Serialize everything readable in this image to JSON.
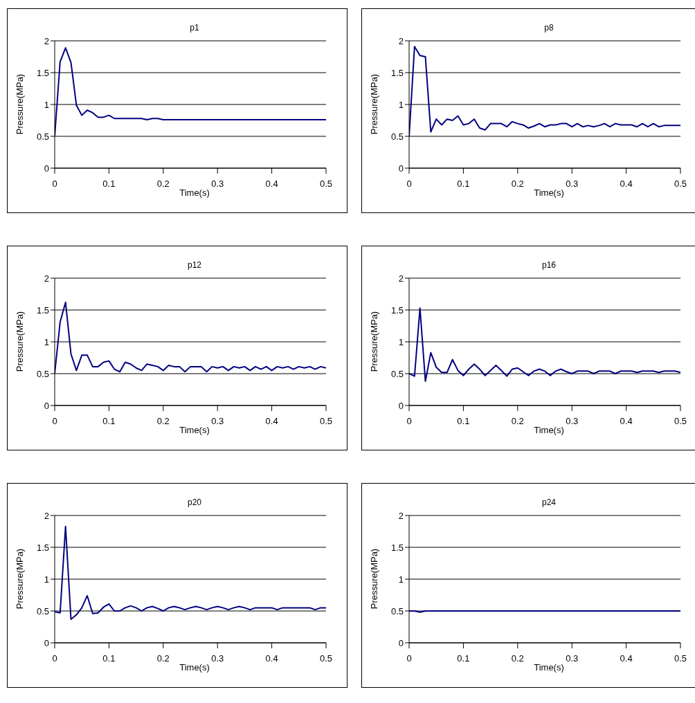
{
  "chart_data": [
    {
      "type": "line",
      "title": "p1",
      "xlabel": "Time(s)",
      "ylabel": "Pressure(MPa)",
      "color": "#000080",
      "grid": "y",
      "xlim": [
        0,
        0.5
      ],
      "ylim": [
        0,
        2
      ],
      "xticks": [
        0,
        0.1,
        0.2,
        0.3,
        0.4,
        0.5
      ],
      "yticks": [
        0,
        0.5,
        1,
        1.5,
        2
      ],
      "x": [
        0,
        0.01,
        0.02,
        0.03,
        0.04,
        0.05,
        0.06,
        0.07,
        0.08,
        0.09,
        0.1,
        0.11,
        0.12,
        0.13,
        0.14,
        0.15,
        0.16,
        0.17,
        0.18,
        0.19,
        0.2,
        0.21,
        0.22,
        0.23,
        0.24,
        0.25,
        0.26,
        0.27,
        0.28,
        0.29,
        0.3,
        0.31,
        0.32,
        0.33,
        0.34,
        0.35,
        0.36,
        0.37,
        0.38,
        0.39,
        0.4,
        0.41,
        0.42,
        0.43,
        0.44,
        0.45,
        0.46,
        0.47,
        0.48,
        0.49,
        0.5
      ],
      "values": [
        0.5,
        1.67,
        1.89,
        1.66,
        0.99,
        0.83,
        0.91,
        0.87,
        0.8,
        0.8,
        0.83,
        0.78,
        0.78,
        0.78,
        0.78,
        0.78,
        0.78,
        0.76,
        0.78,
        0.78,
        0.76,
        0.76,
        0.76,
        0.76,
        0.76,
        0.76,
        0.76,
        0.76,
        0.76,
        0.76,
        0.76,
        0.76,
        0.76,
        0.76,
        0.76,
        0.76,
        0.76,
        0.76,
        0.76,
        0.76,
        0.76,
        0.76,
        0.76,
        0.76,
        0.76,
        0.76,
        0.76,
        0.76,
        0.76,
        0.76,
        0.76
      ]
    },
    {
      "type": "line",
      "title": "p8",
      "xlabel": "Time(s)",
      "ylabel": "Pressure(MPa)",
      "color": "#000080",
      "grid": "y",
      "xlim": [
        0,
        0.5
      ],
      "ylim": [
        0,
        2
      ],
      "xticks": [
        0,
        0.1,
        0.2,
        0.3,
        0.4,
        0.5
      ],
      "yticks": [
        0,
        0.5,
        1,
        1.5,
        2
      ],
      "x": [
        0,
        0.01,
        0.02,
        0.03,
        0.04,
        0.05,
        0.06,
        0.07,
        0.08,
        0.09,
        0.1,
        0.11,
        0.12,
        0.13,
        0.14,
        0.15,
        0.16,
        0.17,
        0.18,
        0.19,
        0.2,
        0.21,
        0.22,
        0.23,
        0.24,
        0.25,
        0.26,
        0.27,
        0.28,
        0.29,
        0.3,
        0.31,
        0.32,
        0.33,
        0.34,
        0.35,
        0.36,
        0.37,
        0.38,
        0.39,
        0.4,
        0.41,
        0.42,
        0.43,
        0.44,
        0.45,
        0.46,
        0.47,
        0.48,
        0.49,
        0.5
      ],
      "values": [
        0.5,
        1.91,
        1.77,
        1.75,
        0.57,
        0.77,
        0.68,
        0.77,
        0.75,
        0.82,
        0.68,
        0.7,
        0.77,
        0.63,
        0.6,
        0.7,
        0.7,
        0.7,
        0.65,
        0.73,
        0.7,
        0.68,
        0.63,
        0.66,
        0.7,
        0.65,
        0.68,
        0.68,
        0.7,
        0.7,
        0.65,
        0.7,
        0.65,
        0.67,
        0.65,
        0.67,
        0.7,
        0.65,
        0.7,
        0.68,
        0.68,
        0.68,
        0.65,
        0.7,
        0.65,
        0.7,
        0.65,
        0.67,
        0.67,
        0.67,
        0.67
      ]
    },
    {
      "type": "line",
      "title": "p12",
      "xlabel": "Time(s)",
      "ylabel": "Pressure(MPa)",
      "color": "#000080",
      "grid": "y",
      "xlim": [
        0,
        0.5
      ],
      "ylim": [
        0,
        2
      ],
      "xticks": [
        0,
        0.1,
        0.2,
        0.3,
        0.4,
        0.5
      ],
      "yticks": [
        0,
        0.5,
        1,
        1.5,
        2
      ],
      "x": [
        0,
        0.01,
        0.02,
        0.03,
        0.04,
        0.05,
        0.06,
        0.07,
        0.08,
        0.09,
        0.1,
        0.11,
        0.12,
        0.13,
        0.14,
        0.15,
        0.16,
        0.17,
        0.18,
        0.19,
        0.2,
        0.21,
        0.22,
        0.23,
        0.24,
        0.25,
        0.26,
        0.27,
        0.28,
        0.29,
        0.3,
        0.31,
        0.32,
        0.33,
        0.34,
        0.35,
        0.36,
        0.37,
        0.38,
        0.39,
        0.4,
        0.41,
        0.42,
        0.43,
        0.44,
        0.45,
        0.46,
        0.47,
        0.48,
        0.49,
        0.5
      ],
      "values": [
        0.5,
        1.31,
        1.62,
        0.81,
        0.55,
        0.79,
        0.79,
        0.61,
        0.61,
        0.68,
        0.7,
        0.57,
        0.53,
        0.68,
        0.65,
        0.59,
        0.55,
        0.65,
        0.63,
        0.61,
        0.55,
        0.63,
        0.61,
        0.61,
        0.53,
        0.61,
        0.61,
        0.61,
        0.53,
        0.61,
        0.59,
        0.61,
        0.55,
        0.61,
        0.59,
        0.61,
        0.55,
        0.61,
        0.57,
        0.61,
        0.55,
        0.61,
        0.59,
        0.61,
        0.57,
        0.61,
        0.59,
        0.61,
        0.57,
        0.61,
        0.59
      ]
    },
    {
      "type": "line",
      "title": "p16",
      "xlabel": "Time(s)",
      "ylabel": "Pressure(MPa)",
      "color": "#000080",
      "grid": "y",
      "xlim": [
        0,
        0.5
      ],
      "ylim": [
        0,
        2
      ],
      "xticks": [
        0,
        0.1,
        0.2,
        0.3,
        0.4,
        0.5
      ],
      "yticks": [
        0,
        0.5,
        1,
        1.5,
        2
      ],
      "x": [
        0,
        0.01,
        0.02,
        0.03,
        0.04,
        0.05,
        0.06,
        0.07,
        0.08,
        0.09,
        0.1,
        0.11,
        0.12,
        0.13,
        0.14,
        0.15,
        0.16,
        0.17,
        0.18,
        0.19,
        0.2,
        0.21,
        0.22,
        0.23,
        0.24,
        0.25,
        0.26,
        0.27,
        0.28,
        0.29,
        0.3,
        0.31,
        0.32,
        0.33,
        0.34,
        0.35,
        0.36,
        0.37,
        0.38,
        0.39,
        0.4,
        0.41,
        0.42,
        0.43,
        0.44,
        0.45,
        0.46,
        0.47,
        0.48,
        0.49,
        0.5
      ],
      "values": [
        0.5,
        0.46,
        1.53,
        0.38,
        0.83,
        0.6,
        0.52,
        0.52,
        0.72,
        0.55,
        0.47,
        0.57,
        0.65,
        0.57,
        0.47,
        0.55,
        0.63,
        0.55,
        0.46,
        0.57,
        0.59,
        0.53,
        0.47,
        0.54,
        0.57,
        0.54,
        0.47,
        0.54,
        0.57,
        0.53,
        0.5,
        0.54,
        0.54,
        0.54,
        0.5,
        0.54,
        0.54,
        0.54,
        0.5,
        0.54,
        0.54,
        0.54,
        0.52,
        0.54,
        0.54,
        0.54,
        0.52,
        0.54,
        0.54,
        0.54,
        0.52
      ]
    },
    {
      "type": "line",
      "title": "p20",
      "xlabel": "Time(s)",
      "ylabel": "Pressure(MPa)",
      "color": "#000080",
      "grid": "y",
      "xlim": [
        0,
        0.5
      ],
      "ylim": [
        0,
        2
      ],
      "xticks": [
        0,
        0.1,
        0.2,
        0.3,
        0.4,
        0.5
      ],
      "yticks": [
        0,
        0.5,
        1,
        1.5,
        2
      ],
      "x": [
        0,
        0.01,
        0.02,
        0.03,
        0.04,
        0.05,
        0.06,
        0.07,
        0.08,
        0.09,
        0.1,
        0.11,
        0.12,
        0.13,
        0.14,
        0.15,
        0.16,
        0.17,
        0.18,
        0.19,
        0.2,
        0.21,
        0.22,
        0.23,
        0.24,
        0.25,
        0.26,
        0.27,
        0.28,
        0.29,
        0.3,
        0.31,
        0.32,
        0.33,
        0.34,
        0.35,
        0.36,
        0.37,
        0.38,
        0.39,
        0.4,
        0.41,
        0.42,
        0.43,
        0.44,
        0.45,
        0.46,
        0.47,
        0.48,
        0.49,
        0.5
      ],
      "values": [
        0.49,
        0.47,
        1.83,
        0.37,
        0.44,
        0.55,
        0.74,
        0.46,
        0.47,
        0.56,
        0.61,
        0.5,
        0.5,
        0.55,
        0.58,
        0.55,
        0.5,
        0.55,
        0.57,
        0.54,
        0.5,
        0.55,
        0.57,
        0.55,
        0.52,
        0.55,
        0.57,
        0.55,
        0.52,
        0.55,
        0.57,
        0.55,
        0.52,
        0.55,
        0.57,
        0.55,
        0.52,
        0.55,
        0.55,
        0.55,
        0.55,
        0.52,
        0.55,
        0.55,
        0.55,
        0.55,
        0.55,
        0.55,
        0.52,
        0.55,
        0.55
      ]
    },
    {
      "type": "line",
      "title": "p24",
      "xlabel": "Time(s)",
      "ylabel": "Pressure(MPa)",
      "color": "#000080",
      "grid": "y",
      "xlim": [
        0,
        0.5
      ],
      "ylim": [
        0,
        2
      ],
      "xticks": [
        0,
        0.1,
        0.2,
        0.3,
        0.4,
        0.5
      ],
      "yticks": [
        0,
        0.5,
        1,
        1.5,
        2
      ],
      "x": [
        0,
        0.01,
        0.02,
        0.03,
        0.04,
        0.05,
        0.06,
        0.07,
        0.08,
        0.09,
        0.1,
        0.11,
        0.12,
        0.13,
        0.14,
        0.15,
        0.16,
        0.17,
        0.18,
        0.19,
        0.2,
        0.21,
        0.22,
        0.23,
        0.24,
        0.25,
        0.26,
        0.27,
        0.28,
        0.29,
        0.3,
        0.31,
        0.32,
        0.33,
        0.34,
        0.35,
        0.36,
        0.37,
        0.38,
        0.39,
        0.4,
        0.41,
        0.42,
        0.43,
        0.44,
        0.45,
        0.46,
        0.47,
        0.48,
        0.49,
        0.5
      ],
      "values": [
        0.5,
        0.5,
        0.48,
        0.5,
        0.5,
        0.5,
        0.5,
        0.5,
        0.5,
        0.5,
        0.5,
        0.5,
        0.5,
        0.5,
        0.5,
        0.5,
        0.5,
        0.5,
        0.5,
        0.5,
        0.5,
        0.5,
        0.5,
        0.5,
        0.5,
        0.5,
        0.5,
        0.5,
        0.5,
        0.5,
        0.5,
        0.5,
        0.5,
        0.5,
        0.5,
        0.5,
        0.5,
        0.5,
        0.5,
        0.5,
        0.5,
        0.5,
        0.5,
        0.5,
        0.5,
        0.5,
        0.5,
        0.5,
        0.5,
        0.5,
        0.5
      ]
    }
  ]
}
